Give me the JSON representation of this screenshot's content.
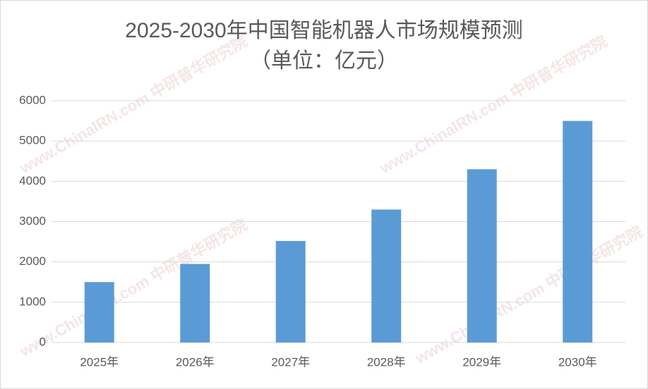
{
  "chart_data": {
    "type": "bar",
    "title": "2025-2030年中国智能机器人市场规模预测",
    "subtitle": "（单位：亿元）",
    "watermark": "www.ChinaIRN.com 中研普华研究院",
    "categories": [
      "2025年",
      "2026年",
      "2027年",
      "2028年",
      "2029年",
      "2030年"
    ],
    "values": [
      1500,
      1950,
      2520,
      3300,
      4300,
      5500
    ],
    "color": "#5b9bd5",
    "ylim": [
      0,
      6000
    ],
    "yticks": [
      0,
      1000,
      2000,
      3000,
      4000,
      5000,
      6000
    ],
    "grid": true
  }
}
